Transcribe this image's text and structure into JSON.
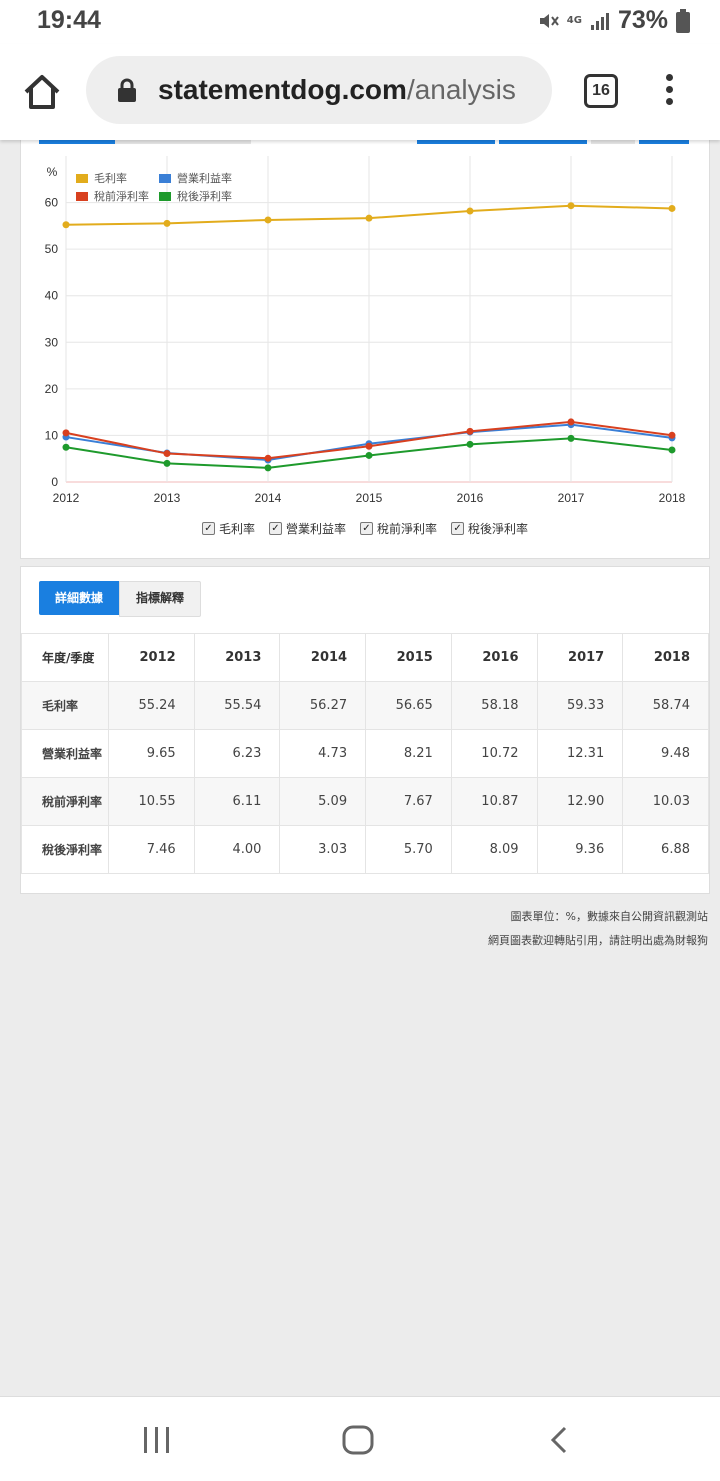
{
  "status_bar": {
    "time": "19:44",
    "network": "4G",
    "battery": "73%"
  },
  "browser": {
    "url_domain": "statementdog.com",
    "url_path": "/analysis",
    "tab_count": "16"
  },
  "chart_data": {
    "type": "line",
    "ylabel": "%",
    "ylim": [
      0,
      70
    ],
    "yticks": [
      0,
      10,
      20,
      30,
      40,
      50,
      60
    ],
    "categories": [
      "2012",
      "2013",
      "2014",
      "2015",
      "2016",
      "2017",
      "2018"
    ],
    "grid": true,
    "legend_position": "top-left",
    "series": [
      {
        "name": "毛利率",
        "color": "#e2ac1c",
        "values": [
          55.24,
          55.54,
          56.27,
          56.65,
          58.18,
          59.33,
          58.74
        ]
      },
      {
        "name": "營業利益率",
        "color": "#3a7fd6",
        "values": [
          9.65,
          6.23,
          4.73,
          8.21,
          10.72,
          12.31,
          9.48
        ]
      },
      {
        "name": "稅前淨利率",
        "color": "#d8401f",
        "values": [
          10.55,
          6.11,
          5.09,
          7.67,
          10.87,
          12.9,
          10.03
        ]
      },
      {
        "name": "稅後淨利率",
        "color": "#1e9a2c",
        "values": [
          7.46,
          4.0,
          3.03,
          5.7,
          8.09,
          9.36,
          6.88
        ]
      }
    ]
  },
  "series_toggles": [
    "毛利率",
    "營業利益率",
    "稅前淨利率",
    "稅後淨利率"
  ],
  "tabs": {
    "active": "詳細數據",
    "inactive": "指標解釋"
  },
  "table": {
    "header": [
      "年度/季度",
      "2012",
      "2013",
      "2014",
      "2015",
      "2016",
      "2017",
      "2018"
    ],
    "rows": [
      [
        "毛利率",
        "55.24",
        "55.54",
        "56.27",
        "56.65",
        "58.18",
        "59.33",
        "58.74"
      ],
      [
        "營業利益率",
        "9.65",
        "6.23",
        "4.73",
        "8.21",
        "10.72",
        "12.31",
        "9.48"
      ],
      [
        "稅前淨利率",
        "10.55",
        "6.11",
        "5.09",
        "7.67",
        "10.87",
        "12.90",
        "10.03"
      ],
      [
        "稅後淨利率",
        "7.46",
        "4.00",
        "3.03",
        "5.70",
        "8.09",
        "9.36",
        "6.88"
      ]
    ]
  },
  "footnotes": [
    "圖表單位：%，數據來自公開資訊觀測站",
    "網頁圖表歡迎轉貼引用，請註明出處為財報狗"
  ]
}
